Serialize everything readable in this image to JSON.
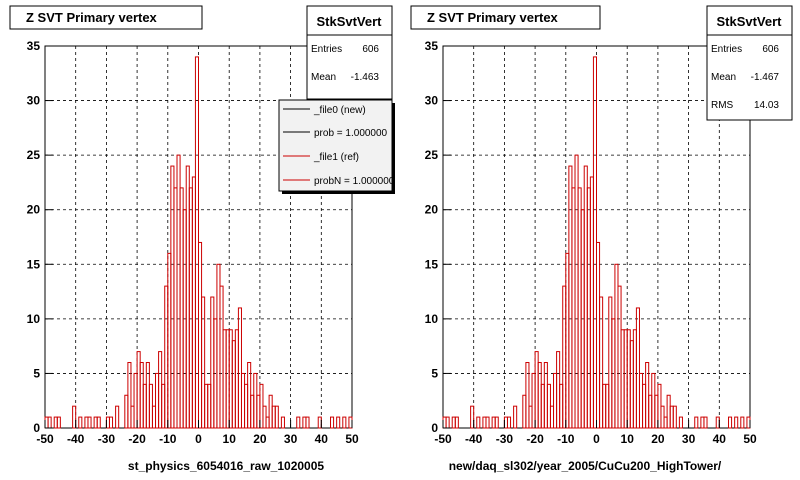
{
  "panels": [
    {
      "title": "Z SVT Primary vertex",
      "stats": {
        "name": "StkSvtVert",
        "rows": [
          {
            "label": "Entries",
            "value": "606"
          },
          {
            "label": "Mean",
            "value": "-1.463"
          }
        ]
      },
      "legend": [
        {
          "text": "_file0 (new)",
          "color": "#000000"
        },
        {
          "text": "prob = 1.000000",
          "color": "#000000"
        },
        {
          "text": "_file1 (ref)",
          "color": "#cc0000"
        },
        {
          "text": "probN = 1.000000",
          "color": "#cc0000"
        }
      ],
      "subtitle": "st_physics_6054016_raw_1020005"
    },
    {
      "title": "Z SVT Primary vertex",
      "stats": {
        "name": "StkSvtVert",
        "rows": [
          {
            "label": "Entries",
            "value": "606"
          },
          {
            "label": "Mean",
            "value": "-1.467"
          },
          {
            "label": "RMS",
            "value": "14.03"
          }
        ]
      },
      "legend": [],
      "subtitle": "new/daq_sl302/year_2005/CuCu200_HighTower/"
    }
  ],
  "chart_data": {
    "type": "bar",
    "title": "Z SVT Primary vertex",
    "xlim": [
      -50,
      50
    ],
    "ylim": [
      0,
      35
    ],
    "x_ticks": [
      -50,
      -40,
      -30,
      -20,
      -10,
      0,
      10,
      20,
      30,
      40,
      50
    ],
    "y_ticks": [
      0,
      5,
      10,
      15,
      20,
      25,
      30,
      35
    ],
    "grid": true,
    "bin_width": 1,
    "bin_low_edges": [
      -50,
      -49,
      -48,
      -47,
      -46,
      -45,
      -44,
      -43,
      -42,
      -41,
      -40,
      -39,
      -38,
      -37,
      -36,
      -35,
      -34,
      -33,
      -32,
      -31,
      -30,
      -29,
      -28,
      -27,
      -26,
      -25,
      -24,
      -23,
      -22,
      -21,
      -20,
      -19,
      -18,
      -17,
      -16,
      -15,
      -14,
      -13,
      -12,
      -11,
      -10,
      -9,
      -8,
      -7,
      -6,
      -5,
      -4,
      -3,
      -2,
      -1,
      0,
      1,
      2,
      3,
      4,
      5,
      6,
      7,
      8,
      9,
      10,
      11,
      12,
      13,
      14,
      15,
      16,
      17,
      18,
      19,
      20,
      21,
      22,
      23,
      24,
      25,
      26,
      27,
      28,
      29,
      30,
      31,
      32,
      33,
      34,
      35,
      36,
      37,
      38,
      39,
      40,
      41,
      42,
      43,
      44,
      45,
      46,
      47,
      48,
      49
    ],
    "series": [
      {
        "color": "#cc0000",
        "values": [
          1,
          1,
          0,
          1,
          1,
          0,
          0,
          0,
          0,
          2,
          0,
          1,
          0,
          1,
          1,
          0,
          1,
          1,
          0,
          0,
          1,
          1,
          0,
          2,
          0,
          0,
          3,
          6,
          2,
          5,
          7,
          6,
          4,
          6,
          4,
          2,
          5,
          7,
          4,
          13,
          16,
          24,
          22,
          25,
          22,
          20,
          24,
          22,
          23,
          34,
          17,
          12,
          4,
          4,
          12,
          10,
          15,
          13,
          9,
          9,
          9,
          8,
          9,
          11,
          5,
          4,
          6,
          3,
          5,
          3,
          4,
          2,
          1,
          3,
          2,
          2,
          0,
          1,
          0,
          0,
          0,
          0,
          1,
          0,
          1,
          1,
          0,
          0,
          0,
          1,
          0,
          0,
          0,
          1,
          0,
          1,
          0,
          1,
          0,
          1
        ]
      }
    ]
  }
}
